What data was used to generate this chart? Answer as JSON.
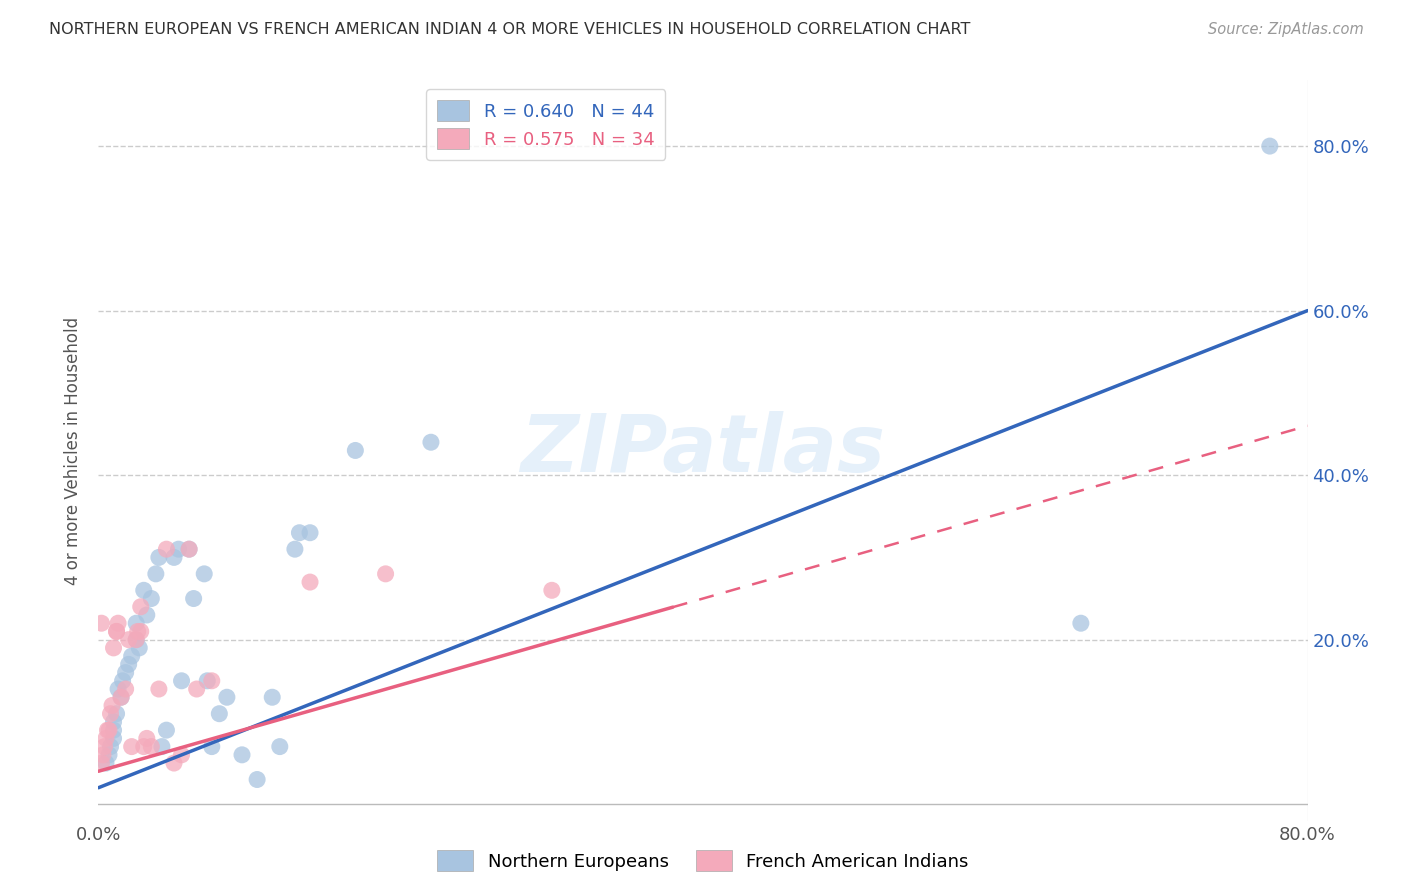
{
  "title": "NORTHERN EUROPEAN VS FRENCH AMERICAN INDIAN 4 OR MORE VEHICLES IN HOUSEHOLD CORRELATION CHART",
  "source": "Source: ZipAtlas.com",
  "ylabel": "4 or more Vehicles in Household",
  "xlim": [
    0,
    0.8
  ],
  "ylim": [
    -0.02,
    0.88
  ],
  "xtick_positions": [
    0.0,
    0.1,
    0.2,
    0.3,
    0.4,
    0.5,
    0.6,
    0.7,
    0.8
  ],
  "xticklabels": [
    "0.0%",
    "",
    "",
    "",
    "",
    "",
    "",
    "",
    "80.0%"
  ],
  "ytick_positions": [
    0.0,
    0.2,
    0.4,
    0.6,
    0.8
  ],
  "ytick_labels_right": [
    "",
    "20.0%",
    "40.0%",
    "60.0%",
    "80.0%"
  ],
  "blue_R": 0.64,
  "blue_N": 44,
  "pink_R": 0.575,
  "pink_N": 34,
  "blue_color": "#A8C4E0",
  "pink_color": "#F4AABB",
  "blue_label": "Northern Europeans",
  "pink_label": "French American Indians",
  "blue_scatter": [
    [
      0.005,
      0.05
    ],
    [
      0.007,
      0.06
    ],
    [
      0.008,
      0.07
    ],
    [
      0.01,
      0.08
    ],
    [
      0.01,
      0.09
    ],
    [
      0.01,
      0.1
    ],
    [
      0.012,
      0.11
    ],
    [
      0.013,
      0.14
    ],
    [
      0.015,
      0.13
    ],
    [
      0.016,
      0.15
    ],
    [
      0.018,
      0.16
    ],
    [
      0.02,
      0.17
    ],
    [
      0.022,
      0.18
    ],
    [
      0.025,
      0.2
    ],
    [
      0.025,
      0.22
    ],
    [
      0.027,
      0.19
    ],
    [
      0.03,
      0.26
    ],
    [
      0.032,
      0.23
    ],
    [
      0.035,
      0.25
    ],
    [
      0.038,
      0.28
    ],
    [
      0.04,
      0.3
    ],
    [
      0.042,
      0.07
    ],
    [
      0.045,
      0.09
    ],
    [
      0.05,
      0.3
    ],
    [
      0.053,
      0.31
    ],
    [
      0.055,
      0.15
    ],
    [
      0.06,
      0.31
    ],
    [
      0.063,
      0.25
    ],
    [
      0.07,
      0.28
    ],
    [
      0.072,
      0.15
    ],
    [
      0.075,
      0.07
    ],
    [
      0.08,
      0.11
    ],
    [
      0.085,
      0.13
    ],
    [
      0.095,
      0.06
    ],
    [
      0.105,
      0.03
    ],
    [
      0.115,
      0.13
    ],
    [
      0.12,
      0.07
    ],
    [
      0.13,
      0.31
    ],
    [
      0.133,
      0.33
    ],
    [
      0.14,
      0.33
    ],
    [
      0.17,
      0.43
    ],
    [
      0.22,
      0.44
    ],
    [
      0.65,
      0.22
    ],
    [
      0.775,
      0.8
    ]
  ],
  "pink_scatter": [
    [
      0.002,
      0.05
    ],
    [
      0.003,
      0.06
    ],
    [
      0.004,
      0.07
    ],
    [
      0.005,
      0.08
    ],
    [
      0.006,
      0.09
    ],
    [
      0.007,
      0.09
    ],
    [
      0.008,
      0.11
    ],
    [
      0.009,
      0.12
    ],
    [
      0.01,
      0.19
    ],
    [
      0.012,
      0.21
    ],
    [
      0.013,
      0.22
    ],
    [
      0.015,
      0.13
    ],
    [
      0.018,
      0.14
    ],
    [
      0.02,
      0.2
    ],
    [
      0.022,
      0.07
    ],
    [
      0.025,
      0.2
    ],
    [
      0.026,
      0.21
    ],
    [
      0.028,
      0.24
    ],
    [
      0.03,
      0.07
    ],
    [
      0.032,
      0.08
    ],
    [
      0.035,
      0.07
    ],
    [
      0.04,
      0.14
    ],
    [
      0.045,
      0.31
    ],
    [
      0.05,
      0.05
    ],
    [
      0.055,
      0.06
    ],
    [
      0.06,
      0.31
    ],
    [
      0.065,
      0.14
    ],
    [
      0.075,
      0.15
    ],
    [
      0.012,
      0.21
    ],
    [
      0.028,
      0.21
    ],
    [
      0.14,
      0.27
    ],
    [
      0.19,
      0.28
    ],
    [
      0.3,
      0.26
    ],
    [
      0.002,
      0.22
    ]
  ],
  "blue_line_x": [
    0.0,
    0.8
  ],
  "blue_line_y": [
    0.02,
    0.6
  ],
  "pink_line_x": [
    0.0,
    0.8
  ],
  "pink_line_y": [
    0.04,
    0.46
  ],
  "pink_line_solid_end": 0.38,
  "watermark": "ZIPatlas",
  "background_color": "#FFFFFF",
  "grid_color": "#CCCCCC"
}
